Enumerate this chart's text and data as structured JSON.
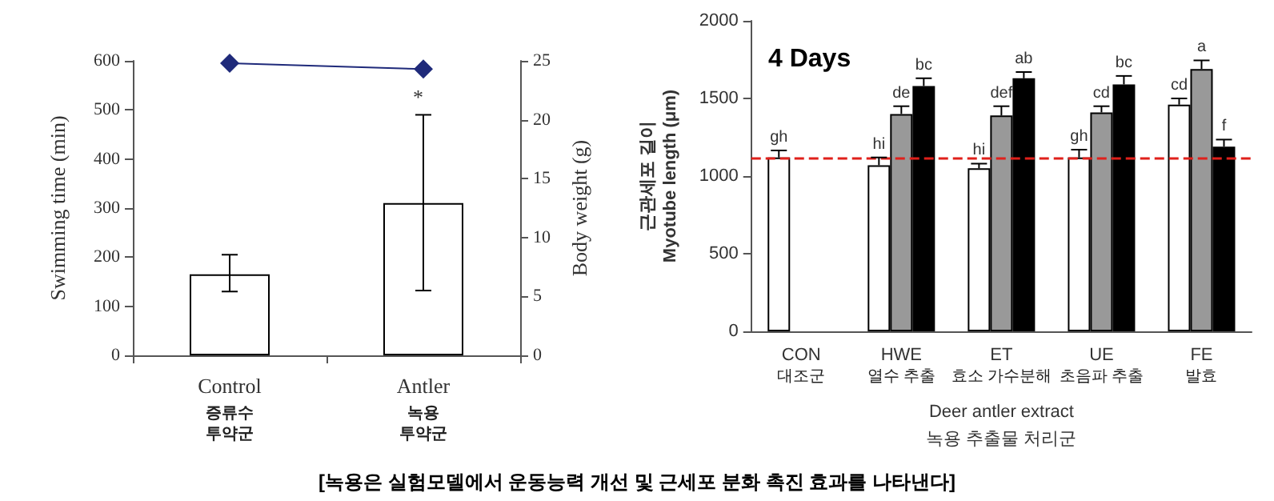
{
  "chart_data": [
    {
      "type": "bar",
      "categories": [
        "Control\n증류수\n투약군",
        "Antler\n녹용\n투약군"
      ],
      "ylabel": "Swimming time (min)",
      "y2label": "Body weight (g)",
      "ylim": [
        0,
        600
      ],
      "yticks": [
        0,
        100,
        200,
        300,
        400,
        500,
        600
      ],
      "y2lim": [
        0,
        25
      ],
      "y2ticks": [
        0,
        5,
        10,
        15,
        20,
        25
      ],
      "grid": false,
      "annotations": [
        "*"
      ],
      "series": [
        {
          "type": "bar",
          "color": "#ffffff",
          "values": [
            165,
            310
          ],
          "errors": [
            [
              130,
              205
            ],
            [
              132,
              490
            ]
          ]
        },
        {
          "type": "line",
          "axis": "y2",
          "color": "#1f2a7a",
          "marker": "diamond",
          "line_style": "solid",
          "values": [
            24.8,
            24.3
          ]
        }
      ]
    },
    {
      "type": "bar",
      "title": "4 Days",
      "categories": [
        "CON\n대조군",
        "HWE\n열수 추출",
        "ET\n효소 가수분해",
        "UE\n초음파 추출",
        "FE\n발효"
      ],
      "xlabel": "Deer antler extract\n녹용 추출물 처리군",
      "ylabel": "근관세포 길이\nMyotube length (μm)",
      "ylim": [
        0,
        2000
      ],
      "yticks": [
        0,
        500,
        1000,
        1500,
        2000
      ],
      "grid": false,
      "ref_lines": [
        {
          "axis": "y",
          "value": 1120,
          "color": "#e0201b",
          "line_style": "dashed"
        }
      ],
      "series": [
        {
          "color": "#ffffff",
          "values": [
            1120,
            1070,
            1050,
            1120,
            1460
          ],
          "errors": [
            45,
            50,
            30,
            50,
            40
          ],
          "value_labels": [
            "gh",
            "hi",
            "hi",
            "gh",
            "cd"
          ]
        },
        {
          "color": "#999999",
          "values": [
            null,
            1400,
            1390,
            1410,
            1690
          ],
          "errors": [
            null,
            50,
            60,
            40,
            55
          ],
          "value_labels": [
            null,
            "de",
            "def",
            "cd",
            "a"
          ]
        },
        {
          "color": "#000000",
          "values": [
            null,
            1580,
            1630,
            1590,
            1190
          ],
          "errors": [
            null,
            50,
            40,
            55,
            45
          ],
          "value_labels": [
            null,
            "bc",
            "ab",
            "bc",
            "f"
          ]
        }
      ]
    },
    {
      "type": "other",
      "title": "[녹용은 실험모델에서 운동능력 개선 및 근세포 분화 촉진 효과를 나타낸다]"
    }
  ]
}
